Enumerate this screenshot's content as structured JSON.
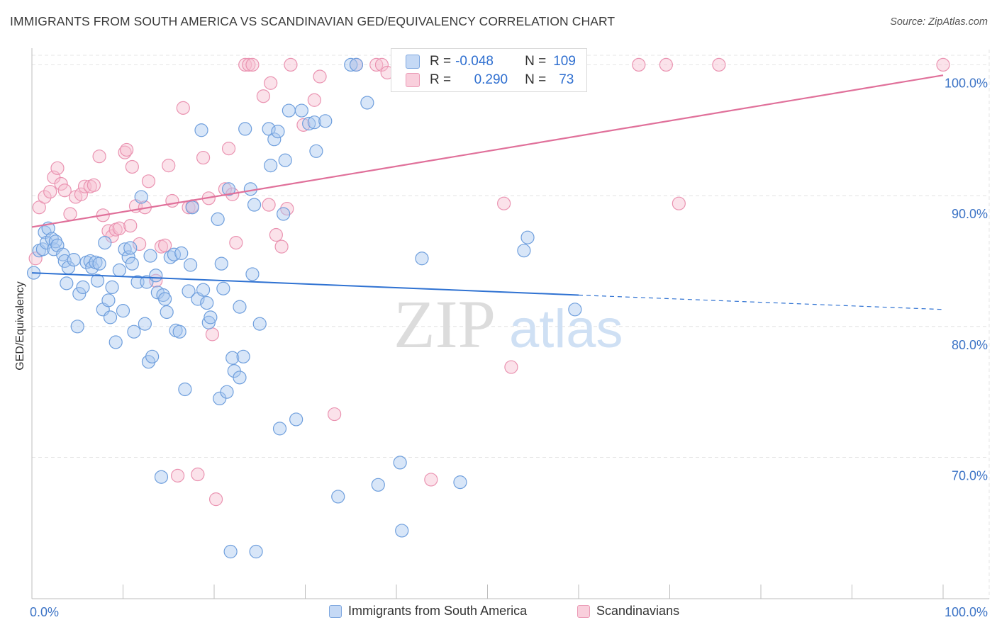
{
  "title": "IMMIGRANTS FROM SOUTH AMERICA VS SCANDINAVIAN GED/EQUIVALENCY CORRELATION CHART",
  "source": "Source: ZipAtlas.com",
  "watermark": {
    "zip": "ZIP",
    "atlas": "atlas"
  },
  "colors": {
    "blue_fill": "#a9c7ef",
    "blue_stroke": "#6f9fdd",
    "blue_line": "#2f72d2",
    "pink_fill": "#f6bfd0",
    "pink_stroke": "#ea93b1",
    "pink_line": "#e0709a",
    "axis_label": "#3d74c6",
    "grid": "#e4e4e4"
  },
  "stats": [
    {
      "r_label": "R =",
      "r_value": "-0.048",
      "n_label": "N =",
      "n_value": "109"
    },
    {
      "r_label": "R =",
      "r_value": "0.290",
      "n_label": "N =",
      "n_value": "73"
    }
  ],
  "legend": [
    {
      "label": "Immigrants from South America"
    },
    {
      "label": "Scandinavians"
    }
  ],
  "chart_data": {
    "type": "scatter",
    "title": "IMMIGRANTS FROM SOUTH AMERICA VS SCANDINAVIAN GED/EQUIVALENCY CORRELATION CHART",
    "xlabel": "",
    "ylabel": "GED/Equivalency",
    "xlim": [
      0,
      100
    ],
    "ylim": [
      59.2,
      101.7
    ],
    "x_tick_labels": [
      {
        "value": 0,
        "label": "0.0%"
      },
      {
        "value": 100,
        "label": "100.0%"
      }
    ],
    "y_ticks": [
      {
        "value": 70,
        "label": "70.0%"
      },
      {
        "value": 80,
        "label": "80.0%"
      },
      {
        "value": 90,
        "label": "90.0%"
      },
      {
        "value": 100,
        "label": "100.0%"
      }
    ],
    "grid": true,
    "legend_position": "bottom-center",
    "series": [
      {
        "name": "Immigrants from South America",
        "color": "#a9c7ef",
        "trend": {
          "x0": 0,
          "y0": 84.1,
          "x1": 60,
          "y1": 82.4,
          "dashed_to_x": 100,
          "dashed_to_y": 81.3
        },
        "points": [
          [
            0.2,
            84.1
          ],
          [
            0.8,
            85.8
          ],
          [
            1.2,
            85.9
          ],
          [
            1.4,
            87.2
          ],
          [
            1.6,
            86.4
          ],
          [
            1.8,
            87.5
          ],
          [
            2.2,
            86.7
          ],
          [
            2.4,
            85.9
          ],
          [
            2.6,
            86.5
          ],
          [
            2.8,
            86.2
          ],
          [
            3.4,
            85.5
          ],
          [
            3.6,
            85.0
          ],
          [
            3.8,
            83.3
          ],
          [
            4.0,
            84.5
          ],
          [
            4.6,
            85.1
          ],
          [
            5.0,
            80.0
          ],
          [
            5.2,
            82.5
          ],
          [
            5.6,
            83.0
          ],
          [
            6.0,
            84.9
          ],
          [
            6.4,
            85.0
          ],
          [
            6.6,
            84.5
          ],
          [
            7.0,
            84.9
          ],
          [
            7.2,
            83.5
          ],
          [
            7.4,
            84.8
          ],
          [
            7.8,
            81.3
          ],
          [
            8.0,
            86.4
          ],
          [
            8.4,
            82.0
          ],
          [
            8.6,
            80.7
          ],
          [
            8.8,
            83.0
          ],
          [
            9.2,
            78.8
          ],
          [
            9.6,
            84.3
          ],
          [
            10.0,
            81.2
          ],
          [
            10.2,
            85.9
          ],
          [
            10.6,
            85.3
          ],
          [
            10.8,
            86.0
          ],
          [
            11.0,
            84.8
          ],
          [
            11.2,
            79.6
          ],
          [
            11.6,
            83.4
          ],
          [
            12.0,
            89.9
          ],
          [
            12.4,
            80.2
          ],
          [
            12.6,
            83.4
          ],
          [
            12.8,
            77.3
          ],
          [
            13.0,
            85.4
          ],
          [
            13.2,
            77.7
          ],
          [
            13.6,
            83.9
          ],
          [
            13.8,
            82.6
          ],
          [
            14.4,
            82.4
          ],
          [
            14.6,
            82.1
          ],
          [
            14.8,
            81.1
          ],
          [
            15.2,
            85.3
          ],
          [
            15.6,
            85.5
          ],
          [
            15.8,
            79.7
          ],
          [
            16.2,
            79.6
          ],
          [
            16.4,
            85.6
          ],
          [
            16.8,
            75.2
          ],
          [
            17.2,
            82.7
          ],
          [
            17.4,
            84.7
          ],
          [
            17.6,
            89.1
          ],
          [
            18.2,
            82.1
          ],
          [
            18.6,
            95.0
          ],
          [
            18.8,
            82.8
          ],
          [
            19.2,
            81.8
          ],
          [
            19.4,
            80.3
          ],
          [
            19.6,
            80.7
          ],
          [
            20.4,
            88.2
          ],
          [
            20.6,
            74.5
          ],
          [
            20.8,
            84.8
          ],
          [
            21.0,
            82.9
          ],
          [
            21.4,
            75.0
          ],
          [
            21.6,
            90.5
          ],
          [
            22.0,
            77.6
          ],
          [
            22.2,
            76.6
          ],
          [
            22.8,
            81.5
          ],
          [
            22.8,
            76.1
          ],
          [
            23.2,
            77.7
          ],
          [
            24.0,
            90.5
          ],
          [
            24.2,
            84.0
          ],
          [
            24.4,
            89.3
          ],
          [
            25.0,
            80.2
          ],
          [
            26.0,
            95.1
          ],
          [
            26.2,
            92.3
          ],
          [
            26.6,
            94.3
          ],
          [
            27.0,
            94.9
          ],
          [
            27.2,
            72.2
          ],
          [
            27.6,
            88.6
          ],
          [
            27.8,
            92.7
          ],
          [
            28.2,
            96.5
          ],
          [
            29.0,
            72.9
          ],
          [
            29.6,
            96.5
          ],
          [
            30.4,
            95.5
          ],
          [
            31.0,
            95.6
          ],
          [
            31.2,
            93.4
          ],
          [
            32.2,
            95.7
          ],
          [
            23.4,
            95.1
          ],
          [
            33.6,
            67.0
          ],
          [
            35.0,
            100.0
          ],
          [
            35.6,
            100.0
          ],
          [
            36.8,
            97.1
          ],
          [
            38.0,
            67.9
          ],
          [
            40.4,
            69.6
          ],
          [
            40.6,
            64.4
          ],
          [
            42.8,
            85.2
          ],
          [
            47.0,
            68.1
          ],
          [
            54.0,
            85.8
          ],
          [
            54.4,
            86.8
          ],
          [
            59.6,
            81.3
          ],
          [
            24.6,
            62.8
          ],
          [
            21.8,
            62.8
          ],
          [
            14.2,
            68.5
          ]
        ]
      },
      {
        "name": "Scandinavians",
        "color": "#f6bfd0",
        "trend": {
          "x0": 0,
          "y0": 87.6,
          "x1": 100,
          "y1": 99.2
        },
        "points": [
          [
            0.4,
            85.2
          ],
          [
            0.8,
            89.1
          ],
          [
            1.4,
            89.9
          ],
          [
            2.0,
            90.3
          ],
          [
            2.4,
            91.4
          ],
          [
            2.8,
            92.1
          ],
          [
            3.2,
            90.9
          ],
          [
            3.6,
            90.4
          ],
          [
            4.2,
            88.6
          ],
          [
            4.8,
            89.9
          ],
          [
            5.4,
            90.1
          ],
          [
            5.8,
            90.7
          ],
          [
            6.4,
            90.7
          ],
          [
            6.8,
            90.8
          ],
          [
            7.4,
            93.0
          ],
          [
            7.8,
            88.5
          ],
          [
            8.4,
            87.3
          ],
          [
            8.8,
            86.9
          ],
          [
            9.2,
            87.4
          ],
          [
            9.6,
            87.5
          ],
          [
            10.2,
            93.3
          ],
          [
            10.4,
            93.5
          ],
          [
            10.8,
            87.7
          ],
          [
            11.0,
            92.2
          ],
          [
            11.4,
            89.2
          ],
          [
            11.8,
            86.3
          ],
          [
            12.4,
            89.1
          ],
          [
            12.8,
            91.1
          ],
          [
            13.6,
            83.5
          ],
          [
            14.2,
            86.1
          ],
          [
            14.6,
            86.2
          ],
          [
            15.0,
            92.3
          ],
          [
            15.4,
            89.6
          ],
          [
            16.0,
            68.6
          ],
          [
            16.6,
            96.7
          ],
          [
            17.2,
            89.1
          ],
          [
            17.6,
            89.2
          ],
          [
            18.2,
            68.7
          ],
          [
            18.8,
            92.9
          ],
          [
            19.4,
            89.8
          ],
          [
            19.8,
            79.4
          ],
          [
            20.2,
            66.8
          ],
          [
            21.2,
            90.5
          ],
          [
            21.6,
            93.6
          ],
          [
            22.0,
            90.1
          ],
          [
            22.4,
            86.4
          ],
          [
            23.4,
            100.0
          ],
          [
            23.8,
            100.0
          ],
          [
            24.2,
            100.0
          ],
          [
            25.4,
            97.6
          ],
          [
            26.0,
            89.3
          ],
          [
            26.2,
            98.6
          ],
          [
            26.8,
            87.0
          ],
          [
            27.4,
            86.1
          ],
          [
            28.0,
            89.0
          ],
          [
            28.4,
            100.0
          ],
          [
            29.8,
            95.4
          ],
          [
            31.0,
            97.3
          ],
          [
            31.6,
            99.1
          ],
          [
            33.2,
            73.3
          ],
          [
            35.6,
            100.0
          ],
          [
            37.8,
            100.0
          ],
          [
            38.4,
            100.0
          ],
          [
            39.0,
            99.4
          ],
          [
            43.8,
            68.3
          ],
          [
            47.2,
            100.0
          ],
          [
            51.8,
            89.4
          ],
          [
            52.6,
            76.9
          ],
          [
            66.6,
            100.0
          ],
          [
            69.6,
            100.0
          ],
          [
            71.0,
            89.4
          ],
          [
            75.4,
            100.0
          ],
          [
            100.0,
            100.0
          ]
        ]
      }
    ]
  }
}
